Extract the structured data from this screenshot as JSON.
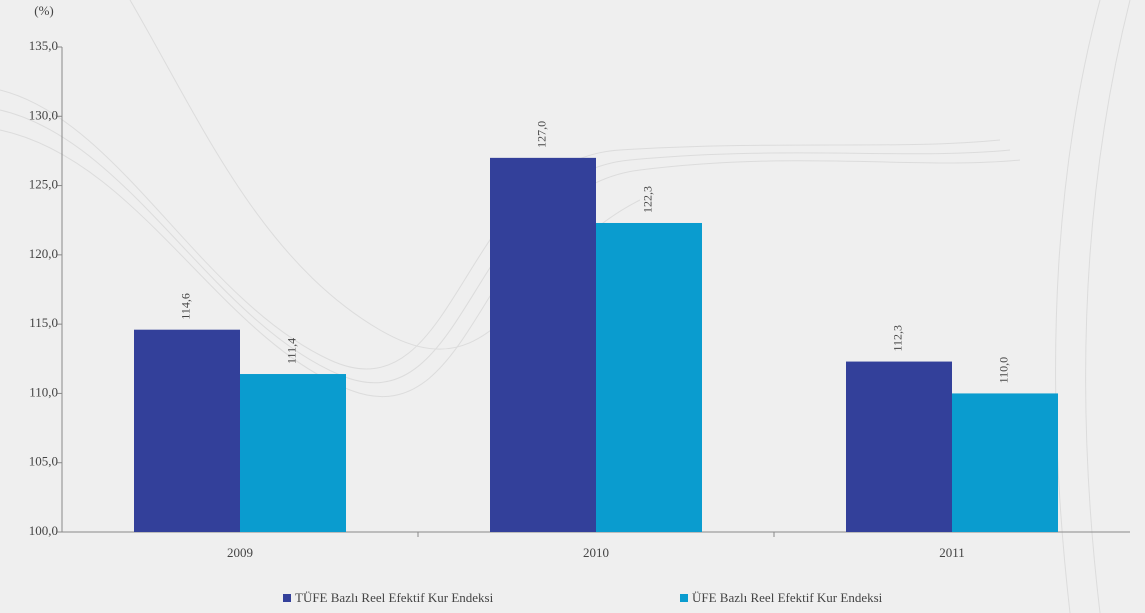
{
  "chart_data": {
    "type": "bar",
    "y_unit_label": "(%)",
    "categories": [
      "2009",
      "2010",
      "2011"
    ],
    "series": [
      {
        "name": "TÜFE Bazlı Reel Efektif Kur Endeksi",
        "color": "#33409a",
        "values": [
          114.6,
          127.0,
          112.3
        ],
        "value_labels": [
          "114,6",
          "127,0",
          "112,3"
        ]
      },
      {
        "name": "ÜFE Bazlı Reel Efektif Kur Endeksi",
        "color": "#0a9ccf",
        "values": [
          111.4,
          122.3,
          110.0
        ],
        "value_labels": [
          "111,4",
          "122,3",
          "110,0"
        ]
      }
    ],
    "ylim": [
      100,
      135
    ],
    "yticks": [
      {
        "value": 100,
        "label": "100,0"
      },
      {
        "value": 105,
        "label": "105,0"
      },
      {
        "value": 110,
        "label": "110,0"
      },
      {
        "value": 115,
        "label": "115,0"
      },
      {
        "value": 120,
        "label": "120,0"
      },
      {
        "value": 125,
        "label": "125,0"
      },
      {
        "value": 130,
        "label": "130,0"
      },
      {
        "value": 135,
        "label": "135,0"
      }
    ],
    "legend": "bottom"
  }
}
